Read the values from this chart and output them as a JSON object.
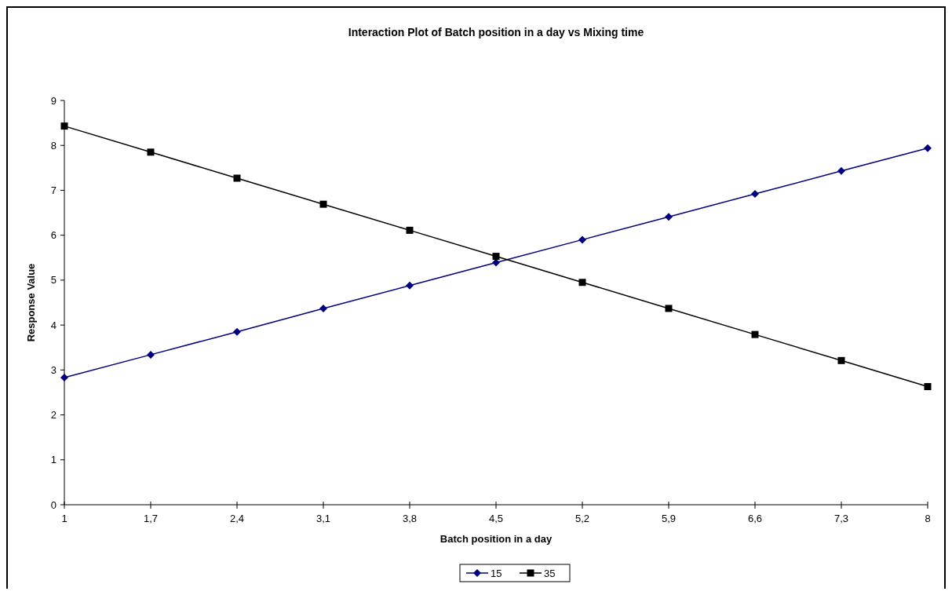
{
  "chart_data": {
    "type": "line",
    "title": "Interaction Plot of Batch position in a day vs Mixing time",
    "xlabel": "Batch position in a day",
    "ylabel": "Response Value",
    "categories": [
      "1",
      "1,7",
      "2,4",
      "3,1",
      "3,8",
      "4,5",
      "5,2",
      "5,9",
      "6,6",
      "7,3",
      "8"
    ],
    "series": [
      {
        "name": "15",
        "color": "#000080",
        "marker": "diamond",
        "values": [
          2.83,
          3.34,
          3.85,
          4.37,
          4.88,
          5.39,
          5.9,
          6.41,
          6.92,
          7.43,
          7.94
        ]
      },
      {
        "name": "35",
        "color": "#000000",
        "marker": "square",
        "values": [
          8.43,
          7.85,
          7.27,
          6.69,
          6.11,
          5.53,
          4.95,
          4.37,
          3.79,
          3.21,
          2.63
        ]
      }
    ],
    "ylim": [
      0,
      9
    ],
    "yticks": [
      0,
      1,
      2,
      3,
      4,
      5,
      6,
      7,
      8,
      9
    ],
    "grid": false,
    "legend": "bottom",
    "line_style": "solid"
  }
}
